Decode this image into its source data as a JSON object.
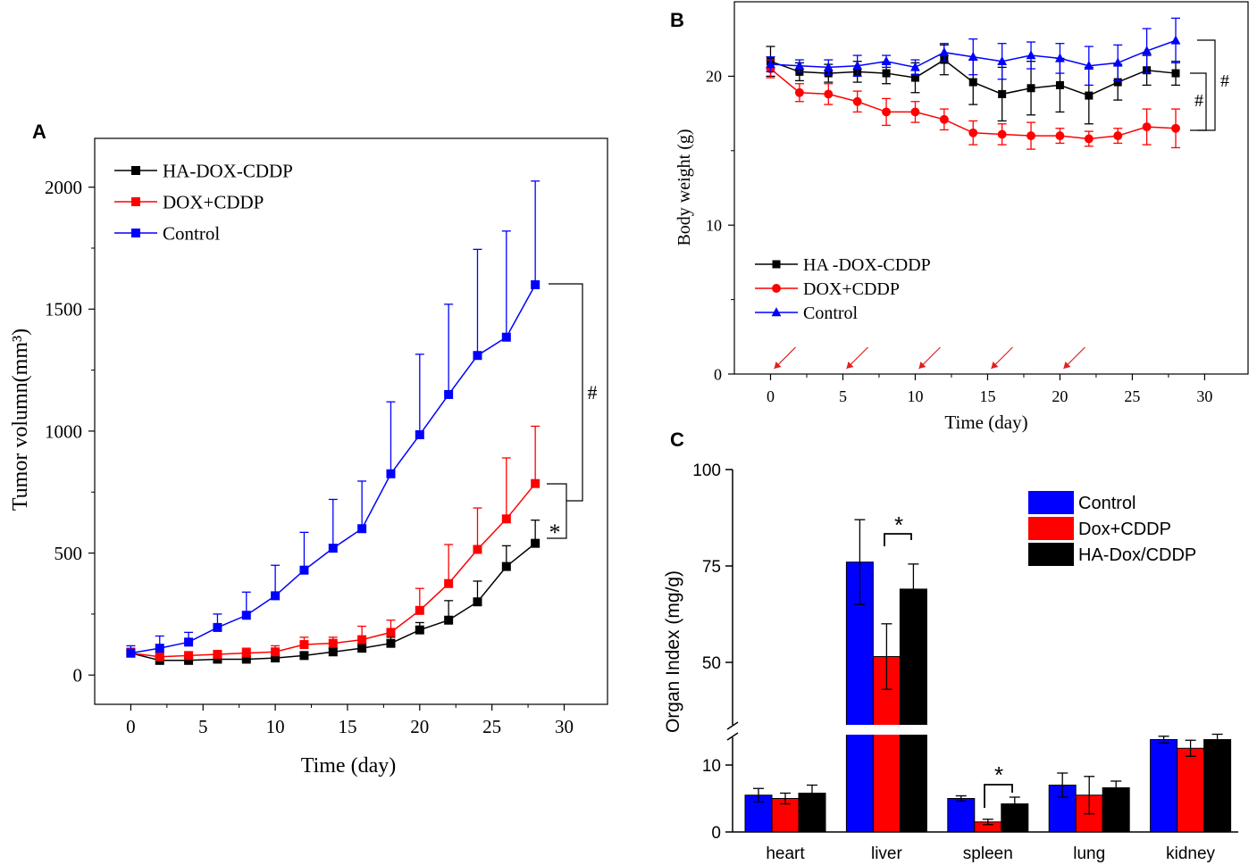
{
  "figure": {
    "panel_labels": [
      "A",
      "B",
      "C"
    ]
  },
  "chart_data": [
    {
      "id": "A",
      "type": "line",
      "title": "",
      "xlabel": "Time (day)",
      "ylabel": "Tumor volumn(mm³)",
      "xlim": [
        -2.5,
        33
      ],
      "ylim": [
        -120,
        2200
      ],
      "xticks": [
        0,
        5,
        10,
        15,
        20,
        25,
        30
      ],
      "yticks": [
        0,
        500,
        1000,
        1500,
        2000
      ],
      "legend_position": "top-left",
      "x": [
        0,
        2,
        4,
        6,
        8,
        10,
        12,
        14,
        16,
        18,
        20,
        22,
        24,
        26,
        28
      ],
      "series": [
        {
          "name": "HA-DOX-CDDP",
          "color": "#000000",
          "marker": "square",
          "values": [
            90,
            60,
            60,
            65,
            65,
            70,
            80,
            95,
            110,
            130,
            185,
            225,
            300,
            445,
            540
          ],
          "errors": [
            20,
            10,
            10,
            10,
            10,
            10,
            15,
            15,
            20,
            25,
            30,
            80,
            85,
            85,
            95
          ]
        },
        {
          "name": "DOX+CDDP",
          "color": "#ff0000",
          "marker": "square",
          "values": [
            90,
            75,
            80,
            85,
            90,
            95,
            125,
            130,
            145,
            175,
            265,
            375,
            515,
            640,
            785
          ],
          "errors": [
            20,
            15,
            15,
            15,
            20,
            25,
            30,
            25,
            55,
            50,
            90,
            160,
            170,
            250,
            235
          ]
        },
        {
          "name": "Control",
          "color": "#0000ff",
          "marker": "square",
          "values": [
            90,
            110,
            135,
            195,
            245,
            325,
            430,
            520,
            600,
            825,
            985,
            1150,
            1310,
            1385,
            1600
          ],
          "errors": [
            30,
            50,
            40,
            55,
            95,
            125,
            155,
            200,
            195,
            295,
            330,
            370,
            435,
            435,
            425
          ]
        }
      ],
      "annotations": [
        "#",
        "*"
      ]
    },
    {
      "id": "B",
      "type": "line",
      "title": "",
      "xlabel": "Time (day)",
      "ylabel": "Body weight (g)",
      "xlim": [
        -2.5,
        33
      ],
      "ylim": [
        0,
        25
      ],
      "xticks": [
        0,
        5,
        10,
        15,
        20,
        25,
        30
      ],
      "yticks": [
        0,
        10,
        20
      ],
      "legend_position": "bottom-left",
      "x": [
        0,
        2,
        4,
        6,
        8,
        10,
        12,
        14,
        16,
        18,
        20,
        22,
        24,
        26,
        28
      ],
      "series": [
        {
          "name": "HA -DOX-CDDP",
          "color": "#000000",
          "marker": "square",
          "values": [
            21.0,
            20.3,
            20.2,
            20.3,
            20.2,
            19.9,
            21.1,
            19.6,
            18.8,
            19.2,
            19.4,
            18.7,
            19.6,
            20.4,
            20.2
          ],
          "errors": [
            1.0,
            0.6,
            0.6,
            0.7,
            0.7,
            1.0,
            1.0,
            1.5,
            1.8,
            1.8,
            1.8,
            1.9,
            1.2,
            1.0,
            0.8
          ]
        },
        {
          "name": "DOX+CDDP",
          "color": "#ff0000",
          "marker": "circle",
          "values": [
            20.5,
            18.9,
            18.8,
            18.3,
            17.6,
            17.6,
            17.1,
            16.2,
            16.1,
            16.0,
            16.0,
            15.8,
            16.0,
            16.6,
            16.5
          ],
          "errors": [
            0.6,
            0.6,
            0.7,
            0.7,
            0.9,
            0.7,
            0.7,
            0.8,
            0.7,
            0.9,
            0.5,
            0.5,
            0.5,
            1.2,
            1.3
          ]
        },
        {
          "name": "Control",
          "color": "#0000ff",
          "marker": "triangle",
          "values": [
            20.8,
            20.7,
            20.6,
            20.7,
            21.0,
            20.6,
            21.6,
            21.3,
            21.0,
            21.4,
            21.2,
            20.7,
            20.9,
            21.7,
            22.4
          ],
          "errors": [
            0.5,
            0.4,
            0.5,
            0.7,
            0.4,
            0.5,
            0.6,
            1.2,
            1.2,
            0.9,
            1.0,
            1.3,
            1.2,
            1.5,
            1.5
          ]
        }
      ],
      "dose_arrows_x": [
        0,
        5,
        10,
        15,
        20
      ],
      "annotations": [
        "#",
        "#"
      ]
    },
    {
      "id": "C",
      "type": "bar",
      "title": "",
      "xlabel": "",
      "ylabel": "Organ Index (mg/g)",
      "axis_break": {
        "low": [
          0,
          15
        ],
        "high": [
          35,
          100
        ]
      },
      "yticks": [
        0,
        10,
        50,
        75,
        100
      ],
      "legend_position": "top-right",
      "categories": [
        "heart",
        "liver",
        "spleen",
        "lung",
        "kidney"
      ],
      "series": [
        {
          "name": "Control",
          "color": "#0000ff",
          "values": [
            5.5,
            76.0,
            5.0,
            7.0,
            13.8
          ],
          "errors": [
            1.0,
            11.0,
            0.4,
            1.8,
            0.5
          ]
        },
        {
          "name": "Dox+CDDP",
          "color": "#ff0000",
          "values": [
            5.0,
            51.5,
            1.5,
            5.5,
            12.5
          ],
          "errors": [
            0.8,
            8.5,
            0.4,
            2.8,
            1.2
          ]
        },
        {
          "name": "HA-Dox/CDDP",
          "color": "#000000",
          "values": [
            5.8,
            69.0,
            4.2,
            6.6,
            13.8
          ],
          "errors": [
            1.2,
            6.5,
            1.0,
            1.0,
            0.8
          ]
        }
      ],
      "annotations": [
        "*",
        "*"
      ]
    }
  ]
}
